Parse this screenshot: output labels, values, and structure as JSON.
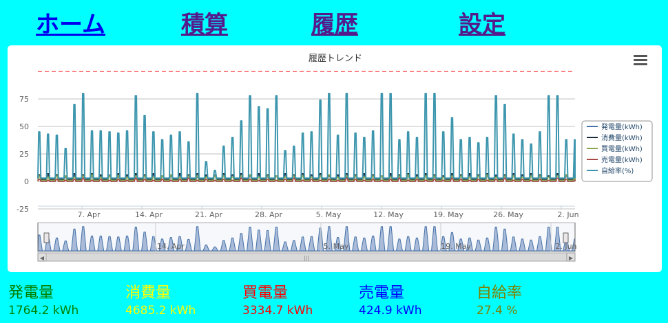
{
  "nav": {
    "home": "ホーム",
    "total": "積算",
    "history": "履歴",
    "settings": "設定"
  },
  "chart_data": {
    "type": "line",
    "title": "履歴トレンド",
    "y_ticks": [
      "75",
      "50",
      "25",
      "0",
      "-25"
    ],
    "ylim": [
      -25,
      100
    ],
    "x_tick_labels": [
      "7. Apr",
      "14. Apr",
      "21. Apr",
      "28. Apr",
      "5. May",
      "12. May",
      "19. May",
      "26. May",
      "2. Jun"
    ],
    "navigator_tick_labels": [
      "14. Apr",
      "5. May",
      "19. May",
      "2. Jun"
    ],
    "reference_line": 100,
    "grid": true,
    "legend_placement": "right",
    "series": [
      {
        "name": "発電量(kWh)",
        "color": "#4572a7",
        "peak_values": [
          5,
          5,
          6,
          4,
          5,
          6,
          5,
          5,
          6,
          4,
          5,
          6,
          5,
          6,
          5,
          5,
          6,
          5,
          4,
          5,
          6,
          5,
          6,
          5,
          5,
          6,
          4,
          5,
          6,
          5,
          5,
          6,
          5,
          6,
          5,
          4,
          5,
          6,
          5,
          5,
          6,
          5,
          5,
          6,
          5,
          4,
          5,
          6,
          5,
          6,
          5,
          5,
          6,
          5,
          5,
          6,
          5,
          4,
          5,
          6,
          5,
          5
        ]
      },
      {
        "name": "消費量(kWh)",
        "color": "#1a2b3c",
        "peak_values": [
          6,
          7,
          6,
          5,
          7,
          6,
          7,
          6,
          5,
          7,
          6,
          7,
          6,
          7,
          5,
          6,
          7,
          6,
          7,
          6,
          5,
          7,
          6,
          7,
          6,
          7,
          6,
          5,
          7,
          6,
          7,
          6,
          7,
          5,
          6,
          7,
          6,
          7,
          6,
          5,
          7,
          6,
          7,
          6,
          7,
          6,
          5,
          7,
          6,
          7,
          6,
          7,
          5,
          6,
          7,
          6,
          7,
          6,
          5,
          7,
          6,
          7
        ]
      },
      {
        "name": "買電量(kWh)",
        "color": "#89a54e",
        "peak_values": [
          5,
          4,
          5,
          5,
          4,
          5,
          6,
          4,
          5,
          5,
          4,
          5,
          5,
          4,
          5,
          6,
          4,
          5,
          5,
          4,
          5,
          5,
          4,
          5,
          6,
          4,
          5,
          5,
          4,
          5,
          5,
          4,
          5,
          6,
          4,
          5,
          5,
          4,
          5,
          5,
          4,
          5,
          6,
          4,
          5,
          5,
          4,
          5,
          5,
          4,
          5,
          6,
          4,
          5,
          5,
          4,
          5,
          5,
          4,
          5,
          6,
          4
        ]
      },
      {
        "name": "売電量(kWh)",
        "color": "#aa4643",
        "peak_values": [
          2,
          1,
          2,
          1,
          2,
          3,
          1,
          2,
          1,
          2,
          1,
          3,
          2,
          1,
          2,
          1,
          2,
          3,
          1,
          2,
          1,
          2,
          1,
          3,
          2,
          1,
          2,
          1,
          2,
          3,
          1,
          2,
          1,
          2,
          1,
          3,
          2,
          1,
          2,
          1,
          2,
          3,
          1,
          2,
          1,
          2,
          1,
          3,
          2,
          1,
          2,
          1,
          2,
          3,
          1,
          2,
          1,
          2,
          1,
          3,
          2,
          1
        ]
      },
      {
        "name": "自給率(%)",
        "color": "#3d96ae",
        "peak_values": [
          45,
          43,
          42,
          30,
          70,
          80,
          46,
          46,
          45,
          44,
          46,
          78,
          60,
          45,
          38,
          42,
          45,
          36,
          80,
          18,
          10,
          32,
          40,
          55,
          78,
          68,
          66,
          78,
          28,
          32,
          44,
          45,
          74,
          80,
          42,
          80,
          44,
          40,
          46,
          80,
          80,
          38,
          45,
          40,
          80,
          80,
          45,
          58,
          38,
          40,
          35,
          40,
          78,
          70,
          43,
          38,
          34,
          45,
          78,
          78,
          38,
          38
        ]
      }
    ],
    "navigator_peak_values": [
      32,
      28,
      26,
      20,
      44,
      49,
      30,
      30,
      29,
      28,
      30,
      48,
      38,
      29,
      24,
      27,
      29,
      23,
      49,
      12,
      8,
      21,
      26,
      35,
      48,
      42,
      41,
      48,
      18,
      21,
      28,
      29,
      46,
      49,
      27,
      49,
      28,
      26,
      30,
      49,
      49,
      24,
      29,
      26,
      49,
      49,
      29,
      37,
      24,
      26,
      22,
      26,
      48,
      44,
      28,
      24,
      22,
      29,
      48,
      48,
      24,
      24
    ]
  },
  "legend_text_color": "#274b6d",
  "summary": [
    {
      "label": "発電量",
      "value": "1764.2 kWh",
      "color": "#008000"
    },
    {
      "label": "消費量",
      "value": "4685.2 kWh",
      "color": "#ffff00"
    },
    {
      "label": "買電量",
      "value": "3334.7 kWh",
      "color": "#ff0000"
    },
    {
      "label": "売電量",
      "value": "424.9 kWh",
      "color": "#0000ff"
    },
    {
      "label": "自給率",
      "value": "27.4 %",
      "color": "#808000"
    }
  ],
  "colors": {
    "background": "#00ffff",
    "nav_active": "#0000ee",
    "nav_visited": "#551a8b",
    "reference_line": "#ff0000"
  }
}
